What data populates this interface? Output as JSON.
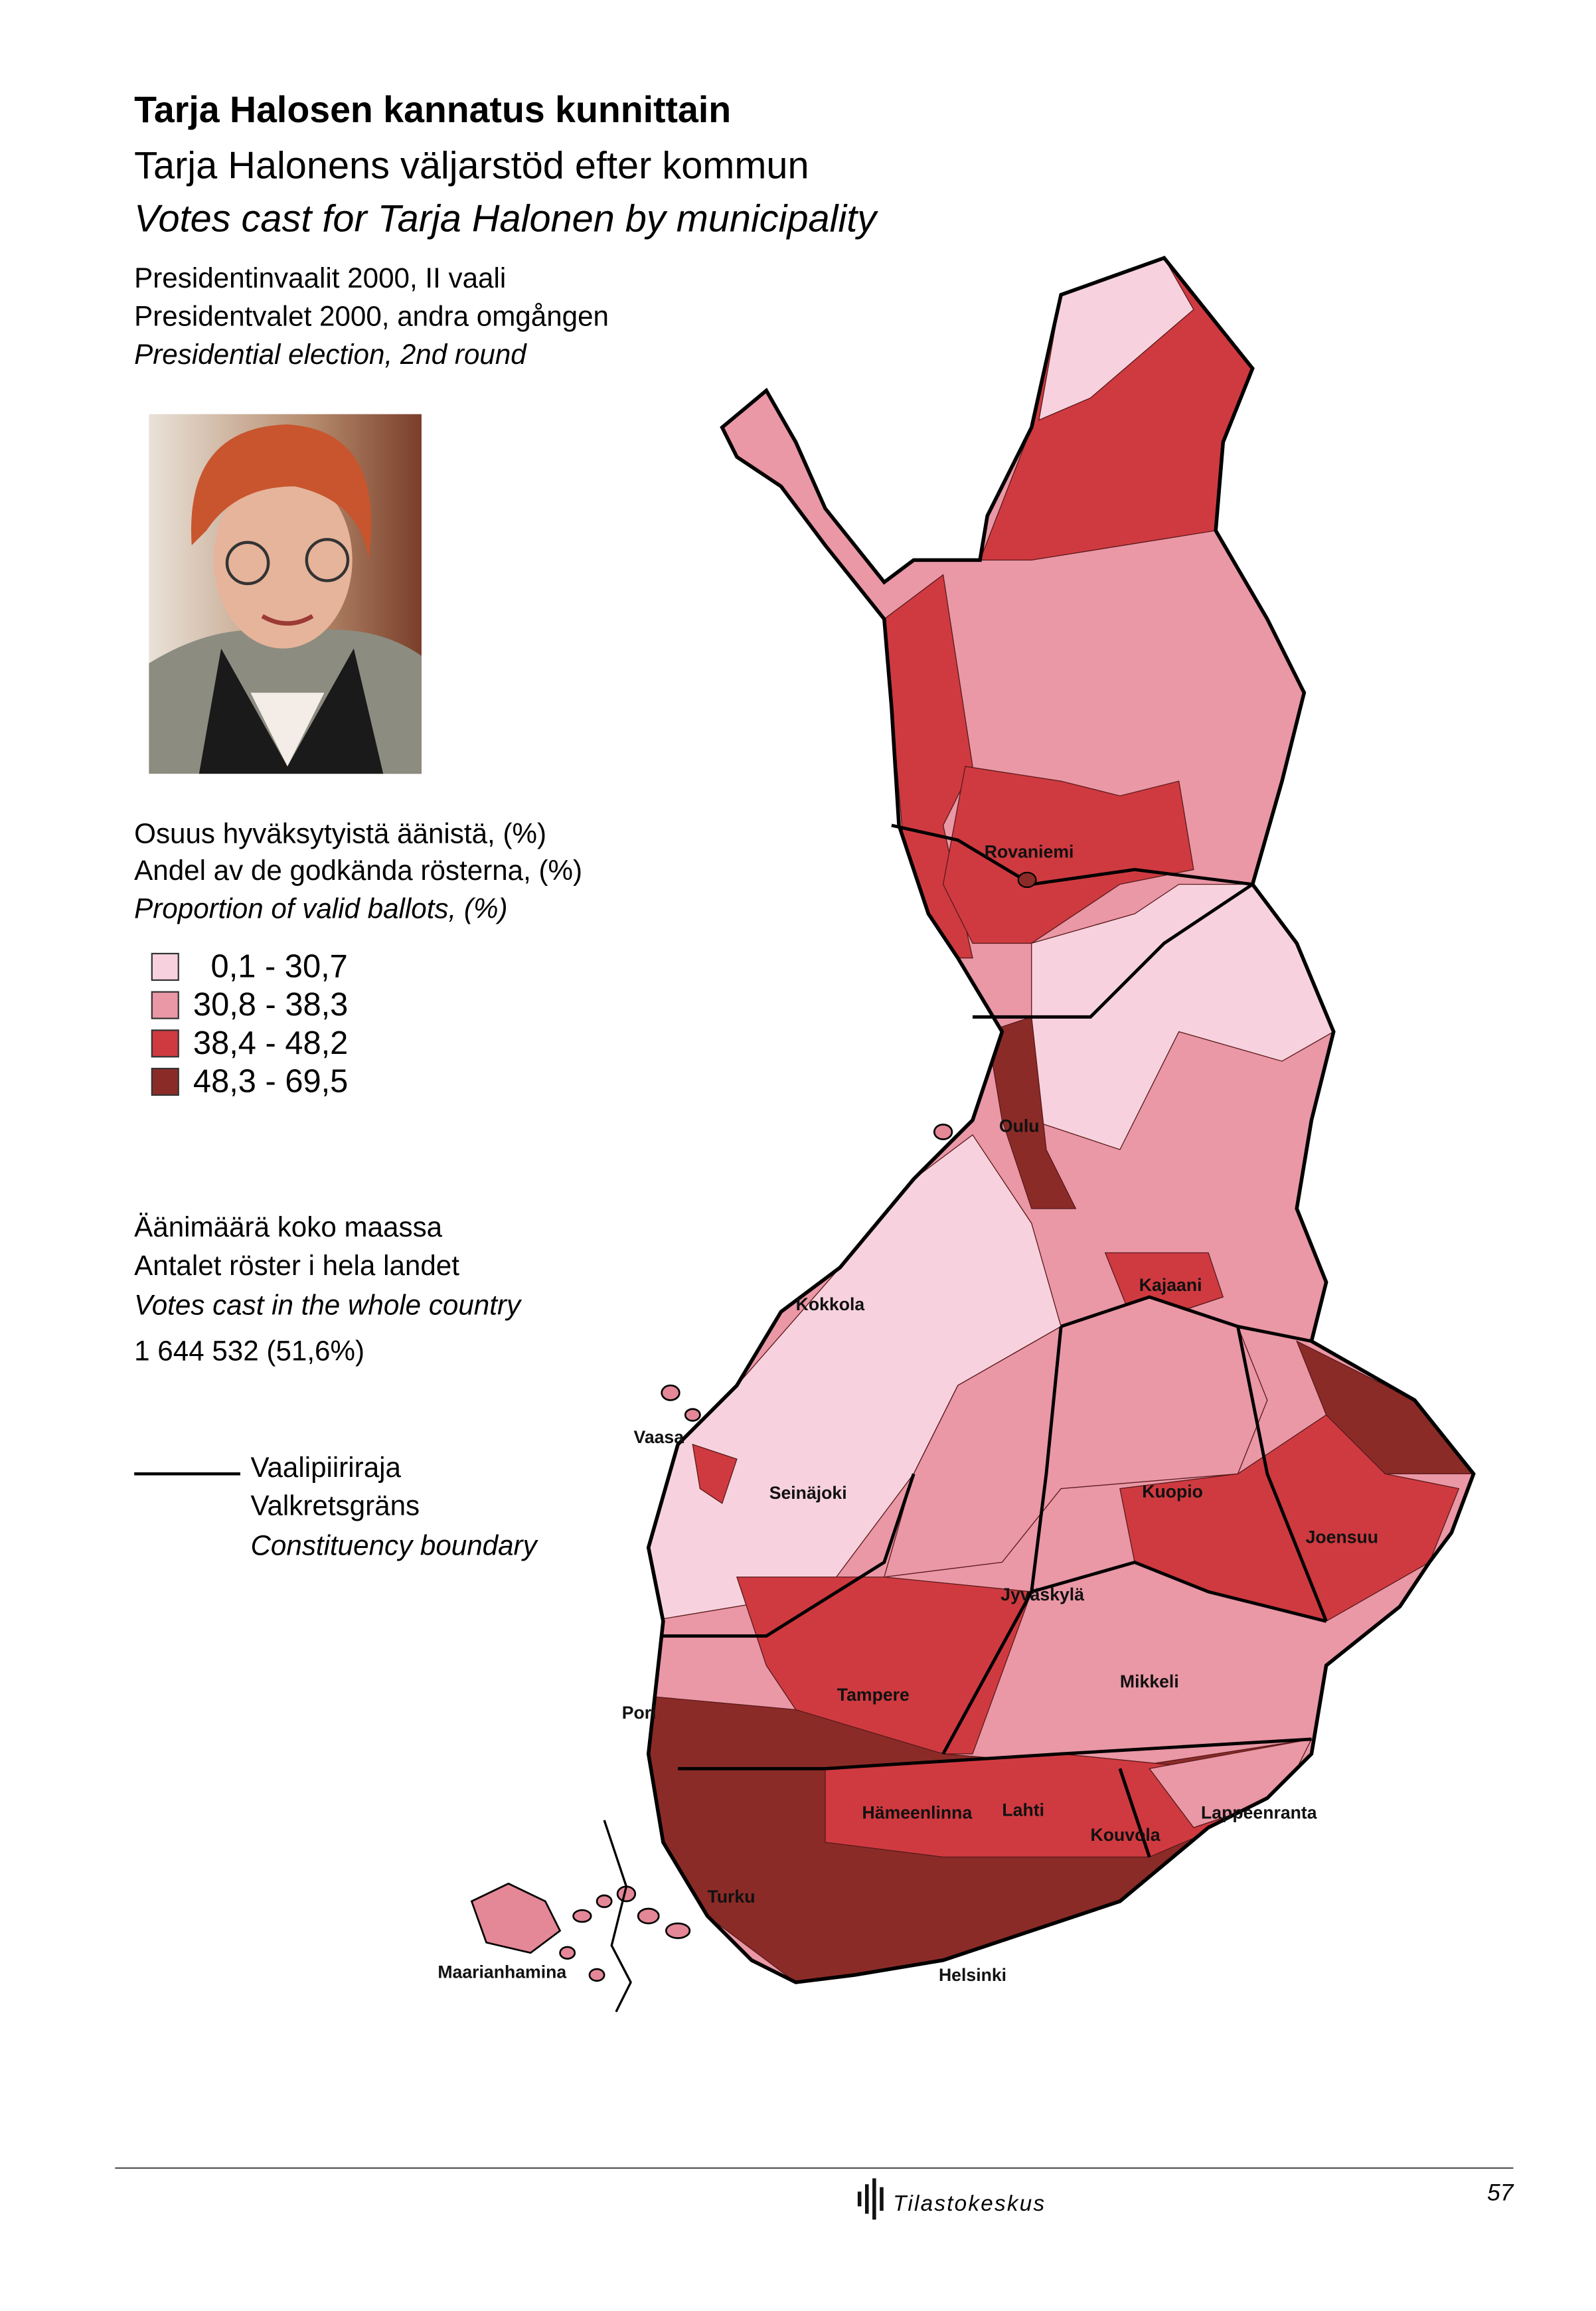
{
  "title": "Tarja Halosen kannatus kunnittain",
  "subtitle_sv": "Tarja Halonens väljarstöd efter kommun",
  "subtitle_en": "Votes cast for Tarja Halonen by municipality",
  "election": [
    "Presidentinvaalit 2000, II vaali",
    "Presidentvalet 2000, andra omgången",
    "Presidential election, 2nd round"
  ],
  "legend": {
    "title": [
      "Osuus hyväksytyistä äänistä, (%)",
      "Andel av de godkända rösterna, (%)",
      "Proportion of valid ballots, (%)"
    ],
    "classes": [
      {
        "label": "0,1 - 30,7",
        "color": "#f7d2de"
      },
      {
        "label": "30,8 - 38,3",
        "color": "#ea97a6"
      },
      {
        "label": "38,4 - 48,2",
        "color": "#cf3a40"
      },
      {
        "label": "48,3 - 69,5",
        "color": "#8b2b27"
      }
    ]
  },
  "total": {
    "label": [
      "Äänimäärä koko maassa",
      "Antalet röster i hela landet",
      "Votes cast in the whole country"
    ],
    "value": "1 644 532 (51,6%)"
  },
  "boundary": {
    "label": [
      "Vaalipiiriraja",
      "Valkretsgräns",
      "Constituency boundary"
    ]
  },
  "places": [
    "Rovaniemi",
    "Oulu",
    "Kokkola",
    "Kajaani",
    "Vaasa",
    "Seinäjoki",
    "Kuopio",
    "Joensuu",
    "Jyväskylä",
    "Tampere",
    "Mikkeli",
    "Pori",
    "Hämeenlinna",
    "Lahti",
    "Kouvola",
    "Lappeenranta",
    "Turku",
    "Maarianhamina",
    "Helsinki"
  ],
  "footer": {
    "publisher": "Tilastokeskus",
    "page": "57"
  }
}
